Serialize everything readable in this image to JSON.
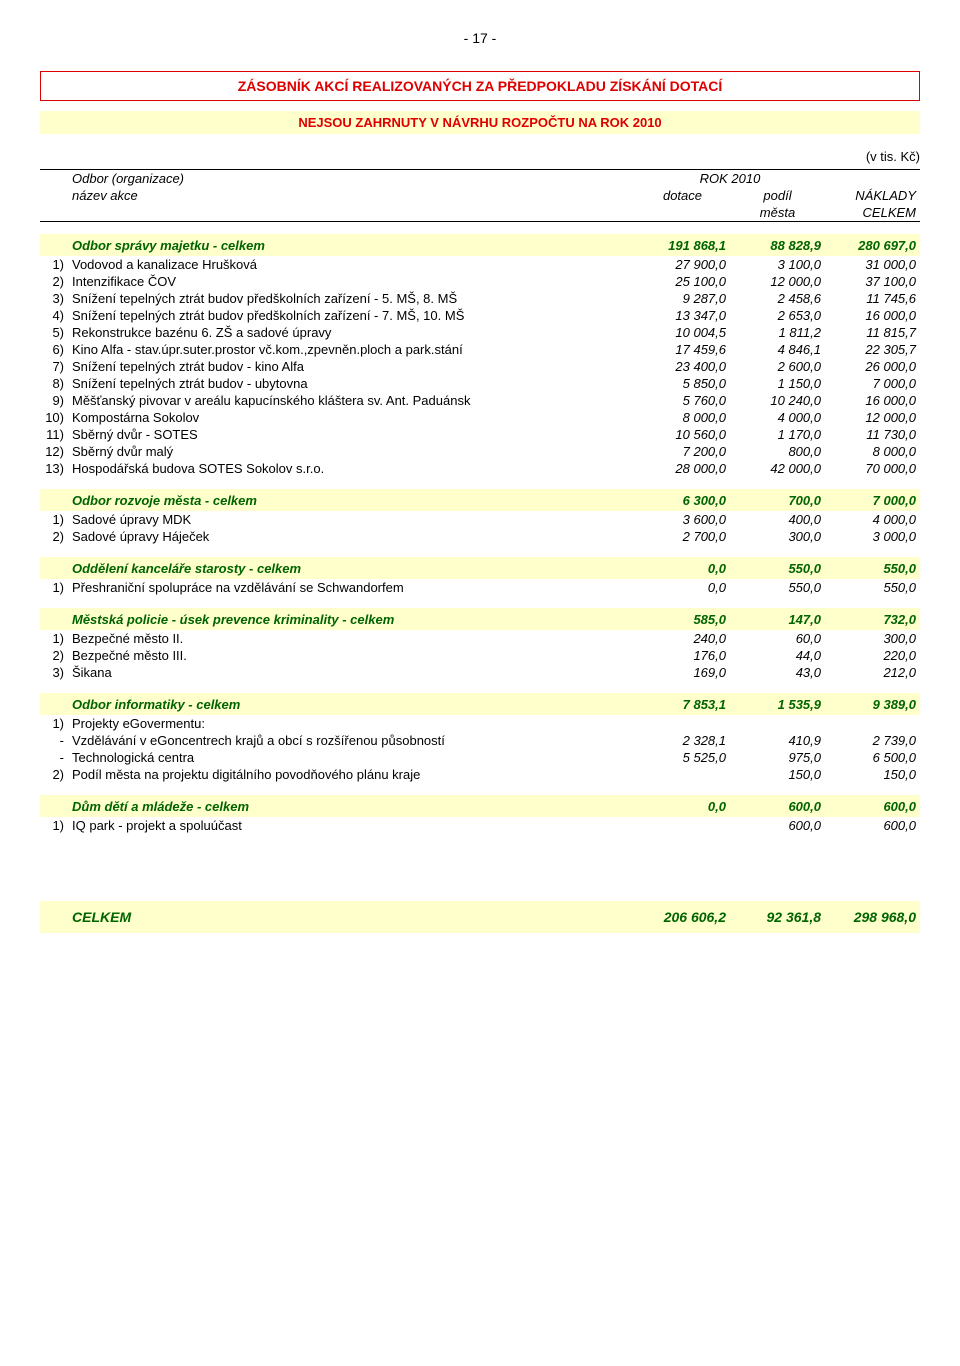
{
  "colors": {
    "accent_red": "#de0000",
    "accent_green": "#006400",
    "band_yellow": "#ffffcc",
    "text": "#000000",
    "background": "#ffffff"
  },
  "page_number": "- 17 -",
  "title": "ZÁSOBNÍK AKCÍ REALIZOVANÝCH ZA PŘEDPOKLADU ZÍSKÁNÍ DOTACÍ",
  "subtitle": "NEJSOU ZAHRNUTY V NÁVRHU ROZPOČTU NA ROK 2010",
  "units": "(v tis. Kč)",
  "header": {
    "org": "Odbor (organizace)",
    "rok": "ROK 2010",
    "nazev": "název akce",
    "dotace": "dotace",
    "podil": "podíl",
    "naklady": "NÁKLADY",
    "mesta": "města",
    "celkem": "CELKEM"
  },
  "sections": [
    {
      "title": "Odbor správy majetku - celkem",
      "v1": "191 868,1",
      "v2": "88 828,9",
      "v3": "280 697,0",
      "rows": [
        {
          "n": "1)",
          "label": "Vodovod a kanalizace Hrušková",
          "v1": "27 900,0",
          "v2": "3 100,0",
          "v3": "31 000,0"
        },
        {
          "n": "2)",
          "label": "Intenzifikace ČOV",
          "v1": "25 100,0",
          "v2": "12 000,0",
          "v3": "37 100,0"
        },
        {
          "n": "3)",
          "label": "Snížení tepelných ztrát budov předškolních zařízení - 5. MŠ, 8. MŠ",
          "v1": "9 287,0",
          "v2": "2 458,6",
          "v3": "11 745,6"
        },
        {
          "n": "4)",
          "label": "Snížení tepelných ztrát budov předškolních zařízení - 7. MŠ, 10. MŠ",
          "v1": "13 347,0",
          "v2": "2 653,0",
          "v3": "16 000,0"
        },
        {
          "n": "5)",
          "label": "Rekonstrukce bazénu 6. ZŠ a sadové úpravy",
          "v1": "10 004,5",
          "v2": "1 811,2",
          "v3": "11 815,7"
        },
        {
          "n": "6)",
          "label": "Kino Alfa - stav.úpr.suter.prostor vč.kom.,zpevněn.ploch a park.stání",
          "v1": "17 459,6",
          "v2": "4 846,1",
          "v3": "22 305,7"
        },
        {
          "n": "7)",
          "label": "Snížení tepelných ztrát budov - kino Alfa",
          "v1": "23 400,0",
          "v2": "2 600,0",
          "v3": "26 000,0"
        },
        {
          "n": "8)",
          "label": "Snížení tepelných ztrát budov - ubytovna",
          "v1": "5 850,0",
          "v2": "1 150,0",
          "v3": "7 000,0"
        },
        {
          "n": "9)",
          "label": "Měšťanský pivovar v areálu kapucínského  kláštera sv. Ant. Paduánsk",
          "v1": "5 760,0",
          "v2": "10 240,0",
          "v3": "16 000,0"
        },
        {
          "n": "10)",
          "label": "Kompostárna Sokolov",
          "v1": "8 000,0",
          "v2": "4 000,0",
          "v3": "12 000,0"
        },
        {
          "n": "11)",
          "label": "Sběrný dvůr - SOTES",
          "v1": "10 560,0",
          "v2": "1 170,0",
          "v3": "11 730,0"
        },
        {
          "n": "12)",
          "label": "Sběrný dvůr malý",
          "v1": "7 200,0",
          "v2": "800,0",
          "v3": "8 000,0"
        },
        {
          "n": "13)",
          "label": "Hospodářská budova SOTES Sokolov s.r.o.",
          "v1": "28 000,0",
          "v2": "42 000,0",
          "v3": "70 000,0"
        }
      ]
    },
    {
      "title": "Odbor rozvoje města  - celkem",
      "v1": "6 300,0",
      "v2": "700,0",
      "v3": "7 000,0",
      "rows": [
        {
          "n": "1)",
          "label": "Sadové úpravy MDK",
          "v1": "3 600,0",
          "v2": "400,0",
          "v3": "4 000,0"
        },
        {
          "n": "2)",
          "label": "Sadové úpravy Háječek",
          "v1": "2 700,0",
          "v2": "300,0",
          "v3": "3 000,0"
        }
      ]
    },
    {
      "title": "Oddělení kanceláře starosty - celkem",
      "v1": "0,0",
      "v2": "550,0",
      "v3": "550,0",
      "rows": [
        {
          "n": "1)",
          "label": "Přeshraniční spolupráce na vzdělávání se Schwandorfem",
          "v1": "0,0",
          "v2": "550,0",
          "v3": "550,0"
        }
      ]
    },
    {
      "title": "Městská policie - úsek prevence kriminality  - celkem",
      "v1": "585,0",
      "v2": "147,0",
      "v3": "732,0",
      "rows": [
        {
          "n": "1)",
          "label": "Bezpečné město II.",
          "v1": "240,0",
          "v2": "60,0",
          "v3": "300,0"
        },
        {
          "n": "2)",
          "label": "Bezpečné město III.",
          "v1": "176,0",
          "v2": "44,0",
          "v3": "220,0"
        },
        {
          "n": "3)",
          "label": "Šikana",
          "v1": "169,0",
          "v2": "43,0",
          "v3": "212,0"
        }
      ]
    },
    {
      "title": "Odbor informatiky - celkem",
      "v1": "7 853,1",
      "v2": "1 535,9",
      "v3": "9 389,0",
      "rows": [
        {
          "n": "1)",
          "label": "Projekty eGovermentu:",
          "v1": "",
          "v2": "",
          "v3": ""
        },
        {
          "n": "-",
          "label": "Vzdělávání v eGoncentrech krajů a obcí s rozšířenou působností",
          "v1": "2 328,1",
          "v2": "410,9",
          "v3": "2 739,0"
        },
        {
          "n": "-",
          "label": "Technologická centra",
          "v1": "5 525,0",
          "v2": "975,0",
          "v3": "6 500,0"
        },
        {
          "n": "2)",
          "label": "Podíl města na projektu digitálního povodňového plánu kraje",
          "v1": "",
          "v2": "150,0",
          "v3": "150,0"
        }
      ]
    },
    {
      "title": "Dům dětí a mládeže - celkem",
      "v1": "0,0",
      "v2": "600,0",
      "v3": "600,0",
      "rows": [
        {
          "n": "1)",
          "label": "IQ park - projekt a spoluúčast",
          "v1": "",
          "v2": "600,0",
          "v3": "600,0"
        }
      ]
    }
  ],
  "total": {
    "label": "CELKEM",
    "v1": "206 606,2",
    "v2": "92 361,8",
    "v3": "298 968,0"
  }
}
